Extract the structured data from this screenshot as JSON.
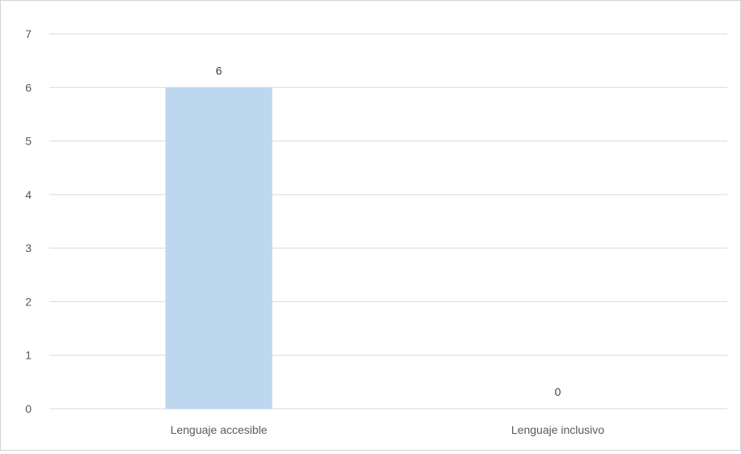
{
  "chart_data": {
    "type": "bar",
    "title": "",
    "xlabel": "",
    "ylabel": "",
    "categories": [
      "Lenguaje accesible",
      "Lenguaje inclusivo"
    ],
    "values": [
      6,
      0
    ],
    "data_labels": [
      "6",
      "0"
    ],
    "ylim": [
      0,
      7
    ],
    "yticks": [
      "0",
      "1",
      "2",
      "3",
      "4",
      "5",
      "6",
      "7"
    ],
    "grid": true,
    "legend": "none",
    "bar_color": "#bdd7ee",
    "gridline_color": "#d9d9d9",
    "text_color": "#595959"
  }
}
